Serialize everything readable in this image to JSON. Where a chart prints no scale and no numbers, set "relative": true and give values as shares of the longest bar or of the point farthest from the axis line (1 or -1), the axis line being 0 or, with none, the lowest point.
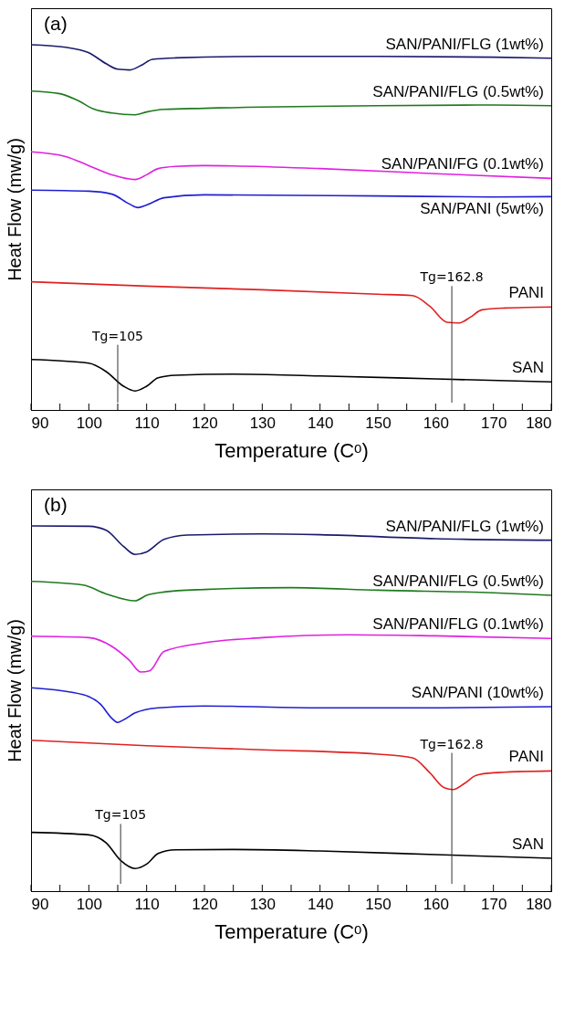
{
  "chart_data": [
    {
      "type": "line",
      "title": "(a)",
      "xlabel": "Temperature (Cᵒ)",
      "ylabel": "Heat Flow (mw/g)",
      "relative": true,
      "xlim": [
        90,
        180
      ],
      "xticks": [
        90,
        {
          "value": 95,
          "label": null
        },
        100,
        {
          "value": 105,
          "label": null
        },
        110,
        {
          "value": 115,
          "label": null
        },
        120,
        {
          "value": 125,
          "label": null
        },
        130,
        {
          "value": 135,
          "label": null
        },
        140,
        {
          "value": 145,
          "label": null
        },
        150,
        {
          "value": 155,
          "label": null
        },
        160,
        {
          "value": 165,
          "label": null
        },
        170,
        {
          "value": 175,
          "label": null
        },
        180
      ],
      "ref_lines": [
        {
          "axis": "x",
          "value": 105,
          "label": "Tg=105"
        },
        {
          "axis": "x",
          "value": 162.8,
          "label": "Tg=162.8"
        }
      ],
      "series": [
        {
          "name": "SAN/PANI/FLG (1wt%)",
          "color": "#1a1a6e",
          "x": [
            90,
            96,
            100,
            103,
            105,
            107,
            109,
            111,
            115,
            130,
            150,
            170,
            180
          ],
          "values": [
            1.0,
            0.993,
            0.978,
            0.948,
            0.933,
            0.931,
            0.943,
            0.96,
            0.964,
            0.968,
            0.968,
            0.966,
            0.963
          ]
        },
        {
          "name": "SAN/PANI/FLG (0.5wt%)",
          "color": "#1e7a1e",
          "x": [
            90,
            95,
            98,
            101,
            104,
            108,
            110,
            113,
            120,
            150,
            170,
            180
          ],
          "values": [
            0.873,
            0.866,
            0.848,
            0.823,
            0.813,
            0.808,
            0.816,
            0.823,
            0.826,
            0.833,
            0.835,
            0.833
          ]
        },
        {
          "name": "SAN/PANI/FG (0.1wt%)",
          "color": "#e020e0",
          "x": [
            90,
            96,
            100,
            104,
            108,
            110,
            112,
            115,
            120,
            140,
            160,
            180
          ],
          "values": [
            0.707,
            0.694,
            0.669,
            0.644,
            0.631,
            0.644,
            0.661,
            0.667,
            0.669,
            0.661,
            0.647,
            0.634
          ]
        },
        {
          "name": "SAN/PANI (5wt%)",
          "color": "#1f1fd0",
          "x": [
            90,
            100,
            104,
            107,
            108.5,
            110,
            113,
            120,
            150,
            170,
            180
          ],
          "values": [
            0.602,
            0.599,
            0.591,
            0.564,
            0.554,
            0.561,
            0.581,
            0.589,
            0.586,
            0.583,
            0.584
          ]
        },
        {
          "name": "PANI",
          "color": "#e02020",
          "x": [
            90,
            110,
            130,
            150,
            156,
            159,
            162,
            164,
            166,
            168,
            172,
            180
          ],
          "values": [
            0.351,
            0.339,
            0.329,
            0.317,
            0.313,
            0.284,
            0.24,
            0.238,
            0.254,
            0.274,
            0.279,
            0.282
          ]
        },
        {
          "name": "SAN",
          "color": "#000000",
          "x": [
            90,
            100,
            103,
            106,
            108,
            110,
            112,
            115,
            125,
            140,
            160,
            180
          ],
          "values": [
            0.138,
            0.128,
            0.105,
            0.065,
            0.052,
            0.065,
            0.088,
            0.095,
            0.098,
            0.093,
            0.085,
            0.077
          ]
        }
      ]
    },
    {
      "type": "line",
      "title": "(b)",
      "xlabel": "Temperature (Cᵒ)",
      "ylabel": "Heat Flow (mw/g)",
      "relative": true,
      "xlim": [
        90,
        180
      ],
      "xticks": [
        90,
        {
          "value": 95,
          "label": null
        },
        100,
        {
          "value": 105,
          "label": null
        },
        110,
        {
          "value": 115,
          "label": null
        },
        120,
        {
          "value": 125,
          "label": null
        },
        130,
        {
          "value": 135,
          "label": null
        },
        140,
        {
          "value": 145,
          "label": null
        },
        150,
        {
          "value": 155,
          "label": null
        },
        160,
        {
          "value": 165,
          "label": null
        },
        170,
        {
          "value": 175,
          "label": null
        },
        180
      ],
      "ref_lines": [
        {
          "axis": "x",
          "value": 105.5,
          "label": "Tg=105"
        },
        {
          "axis": "x",
          "value": 162.8,
          "label": "Tg=162.8"
        }
      ],
      "series": [
        {
          "name": "SAN/PANI/FLG (1wt%)",
          "color": "#1a1a6e",
          "x": [
            90,
            100,
            103,
            106,
            108,
            110,
            113,
            117,
            130,
            140,
            160,
            180
          ],
          "values": [
            1.0,
            0.999,
            0.988,
            0.944,
            0.922,
            0.929,
            0.963,
            0.975,
            0.978,
            0.976,
            0.965,
            0.961
          ]
        },
        {
          "name": "SAN/PANI/FLG (0.5wt%)",
          "color": "#1e7a1e",
          "x": [
            90,
            99,
            103,
            108,
            110,
            113,
            120,
            135,
            150,
            170,
            180
          ],
          "values": [
            0.848,
            0.838,
            0.814,
            0.795,
            0.81,
            0.819,
            0.826,
            0.831,
            0.824,
            0.817,
            0.81
          ]
        },
        {
          "name": "SAN/PANI/FLG (0.1wt%)",
          "color": "#e020e0",
          "x": [
            90,
            100,
            104,
            107,
            109,
            110.5,
            113,
            120,
            130,
            145,
            160,
            180
          ],
          "values": [
            0.698,
            0.694,
            0.67,
            0.632,
            0.6,
            0.603,
            0.656,
            0.68,
            0.694,
            0.702,
            0.699,
            0.692
          ]
        },
        {
          "name": "SAN/PANI (10wt%)",
          "color": "#1f1fd0",
          "x": [
            90,
            99,
            102,
            104,
            105,
            106,
            108,
            112,
            120,
            140,
            160,
            180
          ],
          "values": [
            0.557,
            0.538,
            0.512,
            0.473,
            0.462,
            0.469,
            0.488,
            0.502,
            0.507,
            0.502,
            0.502,
            0.505
          ]
        },
        {
          "name": "PANI",
          "color": "#e02020",
          "x": [
            90,
            110,
            130,
            150,
            156,
            159,
            161.5,
            163,
            165,
            167,
            170,
            180
          ],
          "values": [
            0.413,
            0.398,
            0.387,
            0.375,
            0.365,
            0.324,
            0.283,
            0.278,
            0.295,
            0.317,
            0.324,
            0.329
          ]
        },
        {
          "name": "SAN",
          "color": "#000000",
          "x": [
            90,
            100,
            103,
            105.5,
            108,
            110,
            112,
            115,
            125,
            140,
            160,
            180
          ],
          "values": [
            0.161,
            0.154,
            0.132,
            0.084,
            0.062,
            0.074,
            0.103,
            0.113,
            0.114,
            0.11,
            0.1,
            0.09
          ]
        }
      ]
    }
  ]
}
